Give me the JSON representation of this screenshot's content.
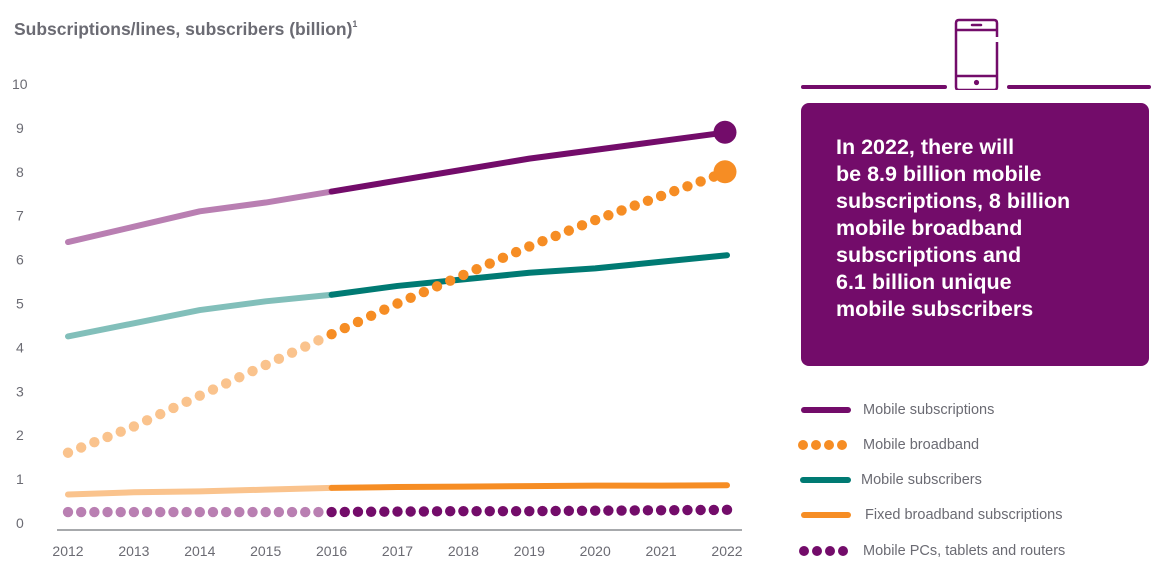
{
  "chart_data": {
    "type": "line",
    "title": "Subscriptions/lines, subscribers (billion)",
    "title_footnote": "1",
    "xlabel": "",
    "ylabel": "",
    "x": [
      2012,
      2013,
      2014,
      2015,
      2016,
      2017,
      2018,
      2019,
      2020,
      2021,
      2022
    ],
    "xlim": [
      2012,
      2022
    ],
    "ylim": [
      0,
      10
    ],
    "yticks": [
      0,
      1,
      2,
      3,
      4,
      5,
      6,
      7,
      8,
      9,
      10
    ],
    "xticks": [
      "2012",
      "2013",
      "2014",
      "2015",
      "2016",
      "2017",
      "2018",
      "2019",
      "2020",
      "2021",
      "2022"
    ],
    "grid": false,
    "forecast_start": 2016,
    "legend_position": "right",
    "series": [
      {
        "name": "Mobile subscriptions",
        "style": "solid",
        "color": "#730c6a",
        "history_color": "#b97fb2",
        "end_marker": true,
        "values": [
          6.4,
          6.75,
          7.1,
          7.3,
          7.55,
          7.8,
          8.05,
          8.3,
          8.5,
          8.7,
          8.9
        ]
      },
      {
        "name": "Mobile broadband",
        "style": "dotted",
        "color": "#f68d24",
        "history_color": "#fac38d",
        "end_marker": true,
        "values": [
          1.6,
          2.2,
          2.9,
          3.6,
          4.3,
          5.0,
          5.65,
          6.3,
          6.9,
          7.45,
          8.0
        ]
      },
      {
        "name": "Mobile subscribers",
        "style": "solid",
        "color": "#007a73",
        "history_color": "#82bfba",
        "end_marker": false,
        "values": [
          4.25,
          4.55,
          4.85,
          5.05,
          5.2,
          5.4,
          5.55,
          5.7,
          5.8,
          5.95,
          6.1
        ]
      },
      {
        "name": "Fixed broadband subscriptions",
        "style": "solid",
        "color": "#f68d24",
        "history_color": "#fac38d",
        "end_marker": false,
        "values": [
          0.65,
          0.7,
          0.72,
          0.76,
          0.8,
          0.82,
          0.83,
          0.84,
          0.85,
          0.85,
          0.86
        ]
      },
      {
        "name": "Mobile PCs, tablets and routers",
        "style": "dotted",
        "color": "#730c6a",
        "history_color": "#b97fb2",
        "end_marker": false,
        "values": [
          0.25,
          0.25,
          0.25,
          0.25,
          0.25,
          0.26,
          0.27,
          0.27,
          0.28,
          0.29,
          0.3
        ]
      }
    ]
  },
  "callout": {
    "lines": [
      "In 2022, there will",
      "be 8.9 billion mobile",
      "subscriptions, 8 billion",
      "mobile broadband",
      "subscriptions and",
      "6.1 billion unique",
      "mobile subscribers"
    ]
  },
  "icon": {
    "name": "smartphone-icon",
    "color": "#730c6a"
  },
  "axis_color": "#a7a9ac"
}
